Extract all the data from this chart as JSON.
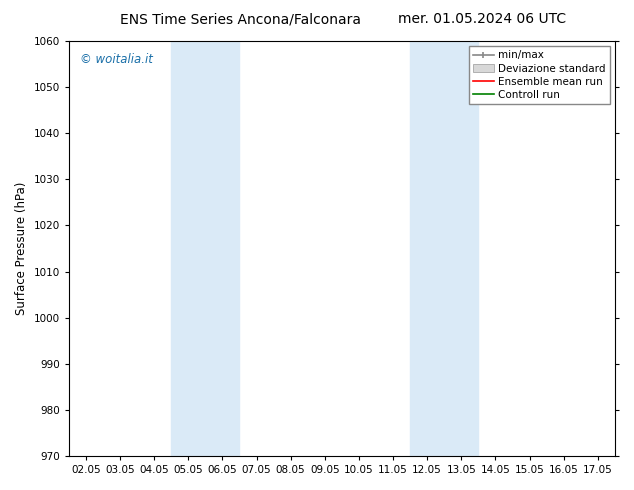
{
  "title_left": "ENS Time Series Ancona/Falconara",
  "title_right": "mer. 01.05.2024 06 UTC",
  "ylabel": "Surface Pressure (hPa)",
  "ylim": [
    970,
    1060
  ],
  "yticks": [
    970,
    980,
    990,
    1000,
    1010,
    1020,
    1030,
    1040,
    1050,
    1060
  ],
  "xlim": [
    -0.5,
    15.5
  ],
  "xtick_labels": [
    "02.05",
    "03.05",
    "04.05",
    "05.05",
    "06.05",
    "07.05",
    "08.05",
    "09.05",
    "10.05",
    "11.05",
    "12.05",
    "13.05",
    "14.05",
    "15.05",
    "16.05",
    "17.05"
  ],
  "xtick_positions": [
    0,
    1,
    2,
    3,
    4,
    5,
    6,
    7,
    8,
    9,
    10,
    11,
    12,
    13,
    14,
    15
  ],
  "shaded_bands": [
    {
      "xmin": 2.5,
      "xmax": 4.5,
      "color": "#daeaf7"
    },
    {
      "xmin": 9.5,
      "xmax": 11.5,
      "color": "#daeaf7"
    }
  ],
  "legend_items": [
    {
      "label": "min/max",
      "color": "#888888",
      "type": "minmax"
    },
    {
      "label": "Deviazione standard",
      "color": "#cccccc",
      "type": "std"
    },
    {
      "label": "Ensemble mean run",
      "color": "red",
      "type": "line"
    },
    {
      "label": "Controll run",
      "color": "green",
      "type": "line"
    }
  ],
  "watermark": "© woitalia.it",
  "watermark_color": "#1a6fa8",
  "background_color": "#ffffff",
  "plot_bg_color": "#ffffff",
  "title_fontsize": 10,
  "tick_fontsize": 7.5,
  "ylabel_fontsize": 8.5,
  "legend_fontsize": 7.5
}
